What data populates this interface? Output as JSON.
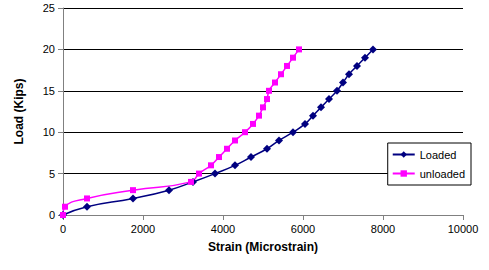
{
  "chart_data": {
    "type": "line",
    "x_label": "Strain (Microstrain)",
    "y_label": "Load (Kips)",
    "xlim": [
      0,
      10000
    ],
    "xticks": [
      0,
      2000,
      4000,
      6000,
      8000,
      10000
    ],
    "ylim": [
      0,
      25
    ],
    "yticks": [
      0,
      5,
      10,
      15,
      20,
      25
    ],
    "grid": "y",
    "legend": "right",
    "series": [
      {
        "name": "Loaded",
        "color": "#000080",
        "marker": "diamond",
        "line_style": "solid",
        "x": [
          0,
          600,
          1750,
          2650,
          3250,
          3800,
          4300,
          4700,
          5100,
          5400,
          5750,
          6050,
          6250,
          6450,
          6650,
          6850,
          7000,
          7150,
          7350,
          7550,
          7750
        ],
        "values": [
          0,
          1,
          2,
          3,
          4,
          5,
          6,
          7,
          8,
          9,
          10,
          11,
          12,
          13,
          14,
          15,
          16,
          17,
          18,
          19,
          20
        ]
      },
      {
        "name": "unloaded",
        "color": "#ff00ff",
        "marker": "square",
        "line_style": "solid",
        "x": [
          0,
          50,
          600,
          1750,
          3200,
          3400,
          3700,
          3900,
          4100,
          4300,
          4550,
          4750,
          4900,
          5000,
          5100,
          5150,
          5300,
          5450,
          5600,
          5750,
          5900
        ],
        "values": [
          0,
          1,
          2,
          3,
          4,
          5,
          6,
          7,
          8,
          9,
          10,
          11,
          12,
          13,
          14,
          15,
          16,
          17,
          18,
          19,
          20
        ]
      }
    ]
  }
}
